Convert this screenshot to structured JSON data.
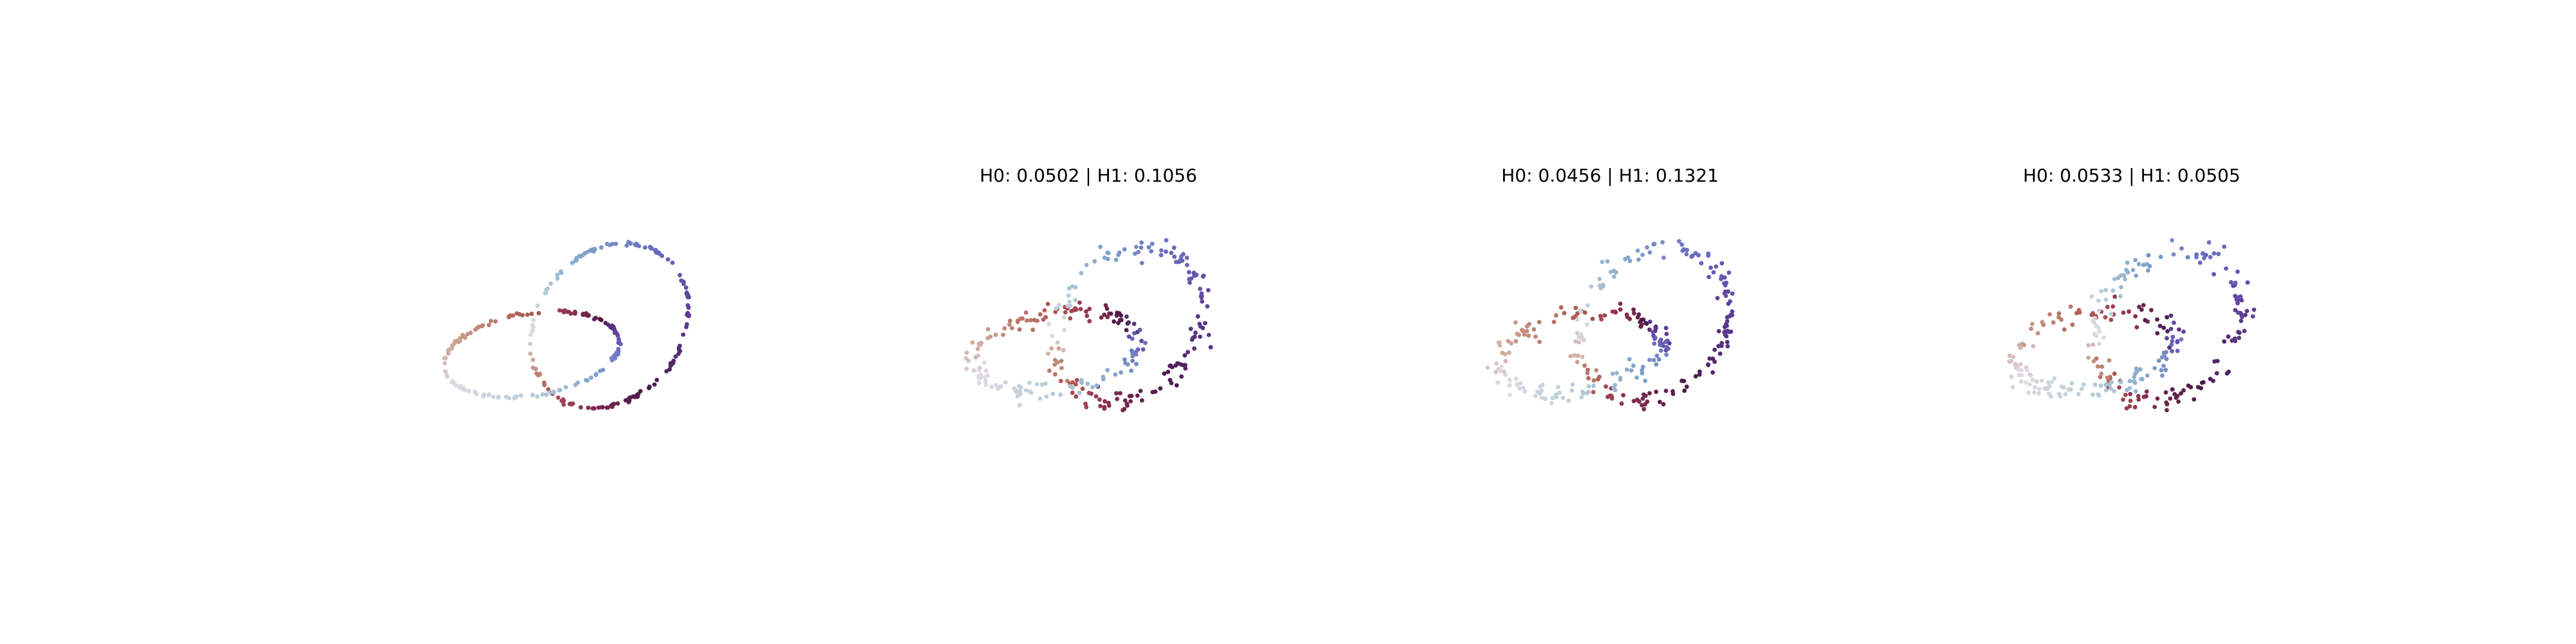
{
  "figure": {
    "background": "#ffffff"
  },
  "colormap": {
    "name": "twilight",
    "stops": [
      "#e2d9e2",
      "#c9a090",
      "#b25e55",
      "#8a2f4f",
      "#4a1a4a",
      "#5f3a95",
      "#6a6bc0",
      "#7fa2c8",
      "#b9cfd9",
      "#e2d9e2"
    ]
  },
  "chart_data": [
    {
      "type": "scatter",
      "title": "",
      "shape": "two-linked-rings",
      "points_per_ring": 150,
      "noise": 0.01,
      "axes": "off"
    },
    {
      "type": "scatter",
      "title": "H0: 0.0502 | H1: 0.1056",
      "shape": "two-linked-rings",
      "points_per_ring": 150,
      "noise": 0.06,
      "axes": "off"
    },
    {
      "type": "scatter",
      "title": "H0: 0.0456 | H1: 0.1321",
      "shape": "two-linked-rings",
      "points_per_ring": 150,
      "noise": 0.055,
      "axes": "off"
    },
    {
      "type": "scatter",
      "title": "H0: 0.0533 | H1: 0.0505",
      "shape": "two-linked-rings",
      "points_per_ring": 150,
      "noise": 0.07,
      "axes": "off"
    }
  ]
}
